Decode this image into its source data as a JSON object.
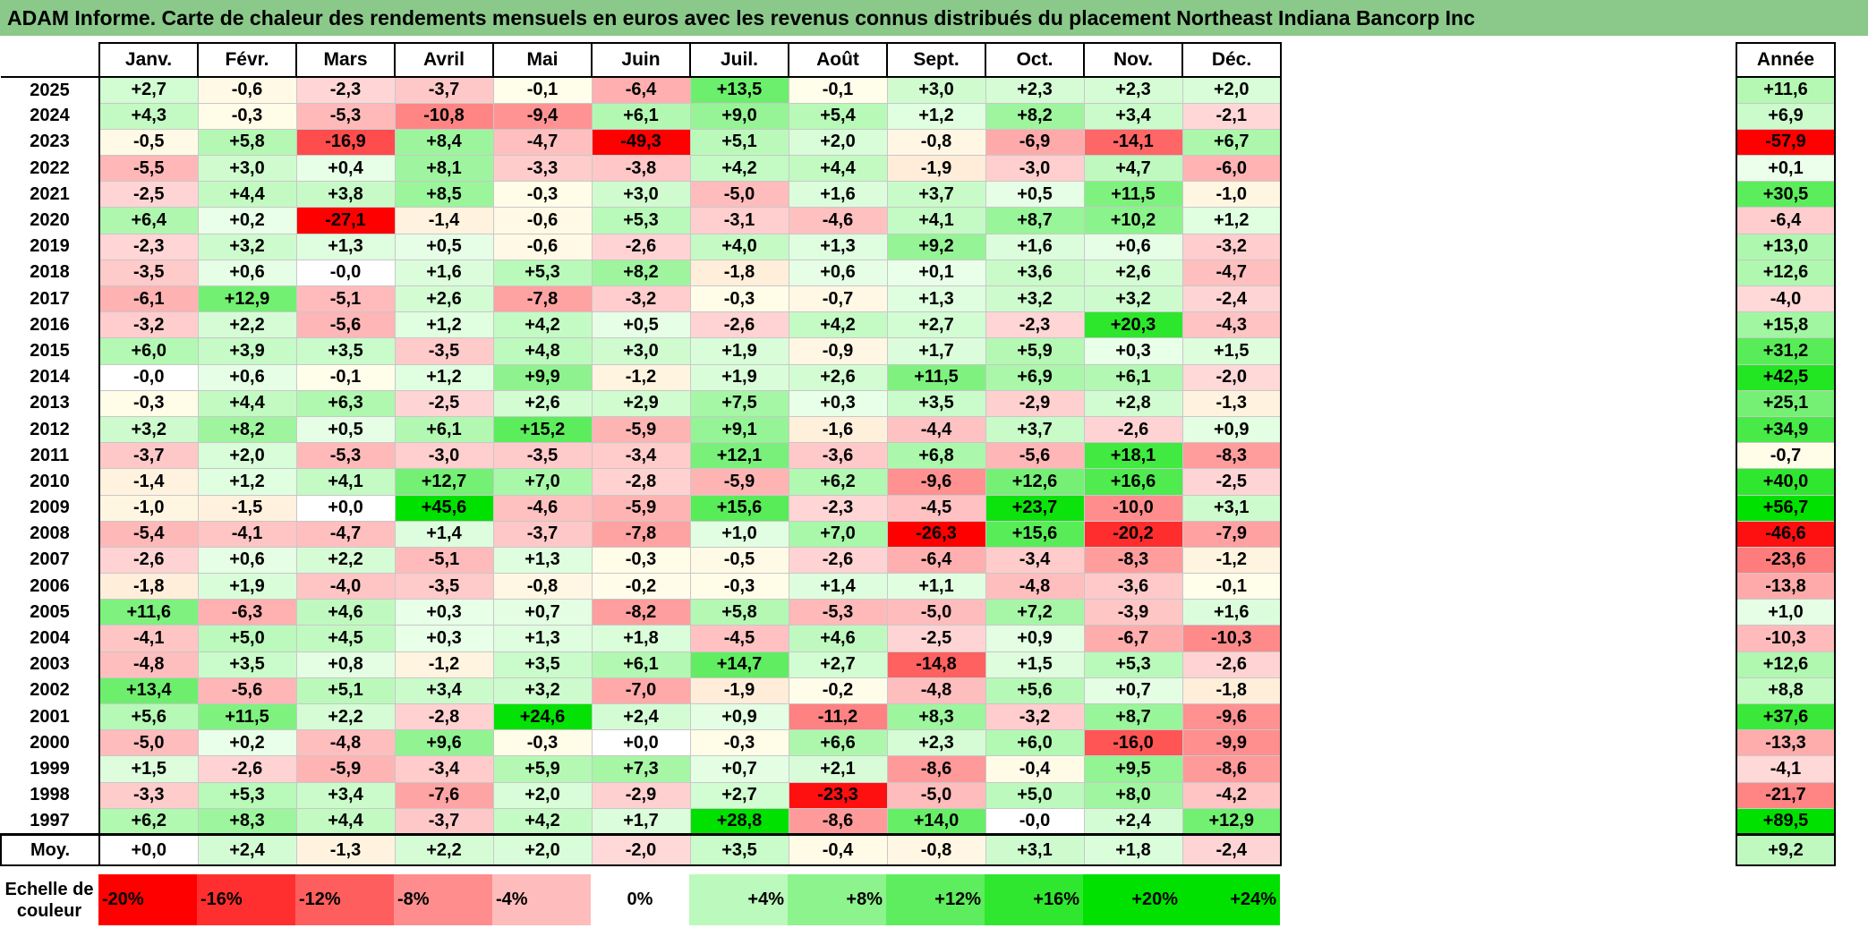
{
  "title": "ADAM Informe. Carte de chaleur des rendements mensuels en euros avec les revenus connus distribués du placement Northeast Indiana Bancorp Inc",
  "colors": {
    "title_bg": "#8ac98a",
    "negative_max": "#ff0000",
    "positive_max": "#00e000",
    "neutral": "#ffffff"
  },
  "chart_data": {
    "type": "heatmap",
    "title": "ADAM Informe. Carte de chaleur des rendements mensuels en euros avec les revenus connus distribués du placement Northeast Indiana Bancorp Inc",
    "months": [
      "Janv.",
      "Févr.",
      "Mars",
      "Avril",
      "Mai",
      "Juin",
      "Juil.",
      "Août",
      "Sept.",
      "Oct.",
      "Nov.",
      "Déc."
    ],
    "annual_label": "Année",
    "rows": [
      {
        "year": "2025",
        "values": [
          "+2,7",
          "-0,6",
          "-2,3",
          "-3,7",
          "-0,1",
          "-6,4",
          "+13,5",
          "-0,1",
          "+3,0",
          "+2,3",
          "+2,3",
          "+2,0"
        ],
        "annual": "+11,6"
      },
      {
        "year": "2024",
        "values": [
          "+4,3",
          "-0,3",
          "-5,3",
          "-10,8",
          "-9,4",
          "+6,1",
          "+9,0",
          "+5,4",
          "+1,2",
          "+8,2",
          "+3,4",
          "-2,1"
        ],
        "annual": "+6,9"
      },
      {
        "year": "2023",
        "values": [
          "-0,5",
          "+5,8",
          "-16,9",
          "+8,4",
          "-4,7",
          "-49,3",
          "+5,1",
          "+2,0",
          "-0,8",
          "-6,9",
          "-14,1",
          "+6,7"
        ],
        "annual": "-57,9"
      },
      {
        "year": "2022",
        "values": [
          "-5,5",
          "+3,0",
          "+0,4",
          "+8,1",
          "-3,3",
          "-3,8",
          "+4,2",
          "+4,4",
          "-1,9",
          "-3,0",
          "+4,7",
          "-6,0"
        ],
        "annual": "+0,1"
      },
      {
        "year": "2021",
        "values": [
          "-2,5",
          "+4,4",
          "+3,8",
          "+8,5",
          "-0,3",
          "+3,0",
          "-5,0",
          "+1,6",
          "+3,7",
          "+0,5",
          "+11,5",
          "-1,0"
        ],
        "annual": "+30,5"
      },
      {
        "year": "2020",
        "values": [
          "+6,4",
          "+0,2",
          "-27,1",
          "-1,4",
          "-0,6",
          "+5,3",
          "-3,1",
          "-4,6",
          "+4,1",
          "+8,7",
          "+10,2",
          "+1,2"
        ],
        "annual": "-6,4"
      },
      {
        "year": "2019",
        "values": [
          "-2,3",
          "+3,2",
          "+1,3",
          "+0,5",
          "-0,6",
          "-2,6",
          "+4,0",
          "+1,3",
          "+9,2",
          "+1,6",
          "+0,6",
          "-3,2"
        ],
        "annual": "+13,0"
      },
      {
        "year": "2018",
        "values": [
          "-3,5",
          "+0,6",
          "-0,0",
          "+1,6",
          "+5,3",
          "+8,2",
          "-1,8",
          "+0,6",
          "+0,1",
          "+3,6",
          "+2,6",
          "-4,7"
        ],
        "annual": "+12,6"
      },
      {
        "year": "2017",
        "values": [
          "-6,1",
          "+12,9",
          "-5,1",
          "+2,6",
          "-7,8",
          "-3,2",
          "-0,3",
          "-0,7",
          "+1,3",
          "+3,2",
          "+3,2",
          "-2,4"
        ],
        "annual": "-4,0"
      },
      {
        "year": "2016",
        "values": [
          "-3,2",
          "+2,2",
          "-5,6",
          "+1,2",
          "+4,2",
          "+0,5",
          "-2,6",
          "+4,2",
          "+2,7",
          "-2,3",
          "+20,3",
          "-4,3"
        ],
        "annual": "+15,8"
      },
      {
        "year": "2015",
        "values": [
          "+6,0",
          "+3,9",
          "+3,5",
          "-3,5",
          "+4,8",
          "+3,0",
          "+1,9",
          "-0,9",
          "+1,7",
          "+5,9",
          "+0,3",
          "+1,5"
        ],
        "annual": "+31,2"
      },
      {
        "year": "2014",
        "values": [
          "-0,0",
          "+0,6",
          "-0,1",
          "+1,2",
          "+9,9",
          "-1,2",
          "+1,9",
          "+2,6",
          "+11,5",
          "+6,9",
          "+6,1",
          "-2,0"
        ],
        "annual": "+42,5"
      },
      {
        "year": "2013",
        "values": [
          "-0,3",
          "+4,4",
          "+6,3",
          "-2,5",
          "+2,6",
          "+2,9",
          "+7,5",
          "+0,3",
          "+3,5",
          "-2,9",
          "+2,8",
          "-1,3"
        ],
        "annual": "+25,1"
      },
      {
        "year": "2012",
        "values": [
          "+3,2",
          "+8,2",
          "+0,5",
          "+6,1",
          "+15,2",
          "-5,9",
          "+9,1",
          "-1,6",
          "-4,4",
          "+3,7",
          "-2,6",
          "+0,9"
        ],
        "annual": "+34,9"
      },
      {
        "year": "2011",
        "values": [
          "-3,7",
          "+2,0",
          "-5,3",
          "-3,0",
          "-3,5",
          "-3,4",
          "+12,1",
          "-3,6",
          "+6,8",
          "-5,6",
          "+18,1",
          "-8,3"
        ],
        "annual": "-0,7"
      },
      {
        "year": "2010",
        "values": [
          "-1,4",
          "+1,2",
          "+4,1",
          "+12,7",
          "+7,0",
          "-2,8",
          "-5,9",
          "+6,2",
          "-9,6",
          "+12,6",
          "+16,6",
          "-2,5"
        ],
        "annual": "+40,0"
      },
      {
        "year": "2009",
        "values": [
          "-1,0",
          "-1,5",
          "+0,0",
          "+45,6",
          "-4,6",
          "-5,9",
          "+15,6",
          "-2,3",
          "-4,5",
          "+23,7",
          "-10,0",
          "+3,1"
        ],
        "annual": "+56,7"
      },
      {
        "year": "2008",
        "values": [
          "-5,4",
          "-4,1",
          "-4,7",
          "+1,4",
          "-3,7",
          "-7,8",
          "+1,0",
          "+7,0",
          "-26,3",
          "+15,6",
          "-20,2",
          "-7,9"
        ],
        "annual": "-46,6"
      },
      {
        "year": "2007",
        "values": [
          "-2,6",
          "+0,6",
          "+2,2",
          "-5,1",
          "+1,3",
          "-0,3",
          "-0,5",
          "-2,6",
          "-6,4",
          "-3,4",
          "-8,3",
          "-1,2"
        ],
        "annual": "-23,6"
      },
      {
        "year": "2006",
        "values": [
          "-1,8",
          "+1,9",
          "-4,0",
          "-3,5",
          "-0,8",
          "-0,2",
          "-0,3",
          "+1,4",
          "+1,1",
          "-4,8",
          "-3,6",
          "-0,1"
        ],
        "annual": "-13,8"
      },
      {
        "year": "2005",
        "values": [
          "+11,6",
          "-6,3",
          "+4,6",
          "+0,3",
          "+0,7",
          "-8,2",
          "+5,8",
          "-5,3",
          "-5,0",
          "+7,2",
          "-3,9",
          "+1,6"
        ],
        "annual": "+1,0"
      },
      {
        "year": "2004",
        "values": [
          "-4,1",
          "+5,0",
          "+4,5",
          "+0,3",
          "+1,3",
          "+1,8",
          "-4,5",
          "+4,6",
          "-2,5",
          "+0,9",
          "-6,7",
          "-10,3"
        ],
        "annual": "-10,3"
      },
      {
        "year": "2003",
        "values": [
          "-4,8",
          "+3,5",
          "+0,8",
          "-1,2",
          "+3,5",
          "+6,1",
          "+14,7",
          "+2,7",
          "-14,8",
          "+1,5",
          "+5,3",
          "-2,6"
        ],
        "annual": "+12,6"
      },
      {
        "year": "2002",
        "values": [
          "+13,4",
          "-5,6",
          "+5,1",
          "+3,4",
          "+3,2",
          "-7,0",
          "-1,9",
          "-0,2",
          "-4,8",
          "+5,6",
          "+0,7",
          "-1,8"
        ],
        "annual": "+8,8"
      },
      {
        "year": "2001",
        "values": [
          "+5,6",
          "+11,5",
          "+2,2",
          "-2,8",
          "+24,6",
          "+2,4",
          "+0,9",
          "-11,2",
          "+8,3",
          "-3,2",
          "+8,7",
          "-9,6"
        ],
        "annual": "+37,6"
      },
      {
        "year": "2000",
        "values": [
          "-5,0",
          "+0,2",
          "-4,8",
          "+9,6",
          "-0,3",
          "+0,0",
          "-0,3",
          "+6,6",
          "+2,3",
          "+6,0",
          "-16,0",
          "-9,9"
        ],
        "annual": "-13,3"
      },
      {
        "year": "1999",
        "values": [
          "+1,5",
          "-2,6",
          "-5,9",
          "-3,4",
          "+5,9",
          "+7,3",
          "+0,7",
          "+2,1",
          "-8,6",
          "-0,4",
          "+9,5",
          "-8,6"
        ],
        "annual": "-4,1"
      },
      {
        "year": "1998",
        "values": [
          "-3,3",
          "+5,3",
          "+3,4",
          "-7,6",
          "+2,0",
          "-2,9",
          "+2,7",
          "-23,3",
          "-5,0",
          "+5,0",
          "+8,0",
          "-4,2"
        ],
        "annual": "-21,7"
      },
      {
        "year": "1997",
        "values": [
          "+6,2",
          "+8,3",
          "+4,4",
          "-3,7",
          "+4,2",
          "+1,7",
          "+28,8",
          "-8,6",
          "+14,0",
          "-0,0",
          "+2,4",
          "+12,9"
        ],
        "annual": "+89,5"
      }
    ],
    "average": {
      "label": "Moy.",
      "values": [
        "+0,0",
        "+2,4",
        "-1,3",
        "+2,2",
        "+2,0",
        "-2,0",
        "+3,5",
        "-0,4",
        "-0,8",
        "+3,1",
        "+1,8",
        "-2,4"
      ],
      "annual": "+9,2"
    },
    "scale": {
      "label": "Echelle de couleur",
      "stops": [
        "-20%",
        "-16%",
        "-12%",
        "-8%",
        "-4%",
        "0%",
        "+4%",
        "+8%",
        "+12%",
        "+16%",
        "+20%",
        "+24%"
      ]
    }
  }
}
